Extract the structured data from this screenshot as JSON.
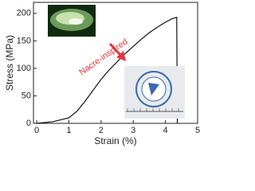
{
  "chart_data": {
    "type": "line",
    "x_label": "Strain (%)",
    "y_label": "Stress (MPa)",
    "annotation": "Nacre-inspired",
    "x": [
      0,
      0.5,
      1,
      1.25,
      1.5,
      1.75,
      2,
      2.25,
      2.5,
      2.75,
      3,
      3.25,
      3.5,
      3.75,
      4,
      4.2,
      4.35,
      4.37
    ],
    "series": [
      {
        "name": "Nacre-inspired",
        "color": "#111111",
        "values": [
          0,
          3,
          10,
          22,
          40,
          60,
          80,
          97,
          112,
          127,
          140,
          153,
          165,
          175,
          184,
          190,
          193,
          0
        ]
      }
    ],
    "xlim": [
      -0.1,
      5
    ],
    "xticks": [
      0,
      1,
      2,
      3,
      4,
      5
    ],
    "ylim": [
      0,
      220
    ],
    "yticks": [
      0,
      50,
      100,
      150,
      200
    ],
    "annotation_color": "#e8353a"
  }
}
